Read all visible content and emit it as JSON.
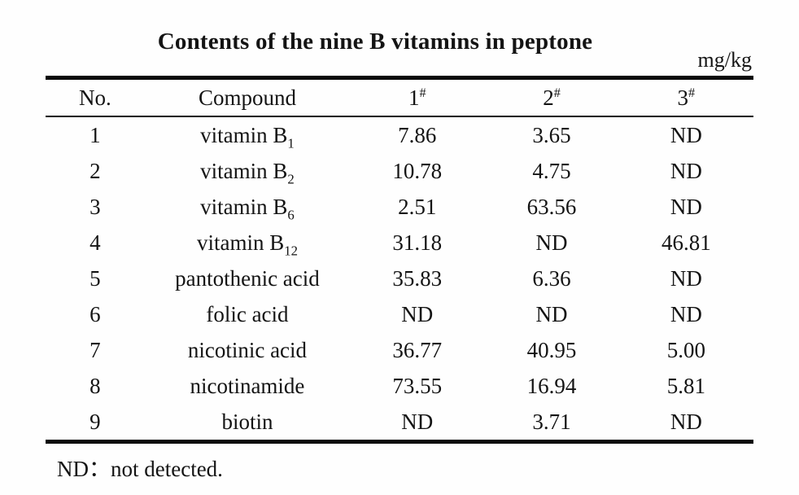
{
  "table": {
    "title": "Contents of the nine B vitamins in peptone",
    "unit": "mg/kg",
    "headers": {
      "no": "No.",
      "compound": "Compound",
      "samples": [
        {
          "num": "1",
          "mark": "#"
        },
        {
          "num": "2",
          "mark": "#"
        },
        {
          "num": "3",
          "mark": "#"
        }
      ]
    },
    "rows": [
      {
        "no": "1",
        "compound_base": "vitamin B",
        "compound_sub": "1",
        "c1": "7.86",
        "c2": "3.65",
        "c3": "ND"
      },
      {
        "no": "2",
        "compound_base": "vitamin B",
        "compound_sub": "2",
        "c1": "10.78",
        "c2": "4.75",
        "c3": "ND"
      },
      {
        "no": "3",
        "compound_base": "vitamin B",
        "compound_sub": "6",
        "c1": "2.51",
        "c2": "63.56",
        "c3": "ND"
      },
      {
        "no": "4",
        "compound_base": "vitamin B",
        "compound_sub": "12",
        "c1": "31.18",
        "c2": "ND",
        "c3": "46.81"
      },
      {
        "no": "5",
        "compound_base": "pantothenic acid",
        "compound_sub": "",
        "c1": "35.83",
        "c2": "6.36",
        "c3": "ND"
      },
      {
        "no": "6",
        "compound_base": "folic acid",
        "compound_sub": "",
        "c1": "ND",
        "c2": "ND",
        "c3": "ND"
      },
      {
        "no": "7",
        "compound_base": "nicotinic acid",
        "compound_sub": "",
        "c1": "36.77",
        "c2": "40.95",
        "c3": "5.00"
      },
      {
        "no": "8",
        "compound_base": "nicotinamide",
        "compound_sub": "",
        "c1": "73.55",
        "c2": "16.94",
        "c3": "5.81"
      },
      {
        "no": "9",
        "compound_base": "biotin",
        "compound_sub": "",
        "c1": "ND",
        "c2": "3.71",
        "c3": "ND"
      }
    ],
    "footnote": "ND：not detected."
  }
}
